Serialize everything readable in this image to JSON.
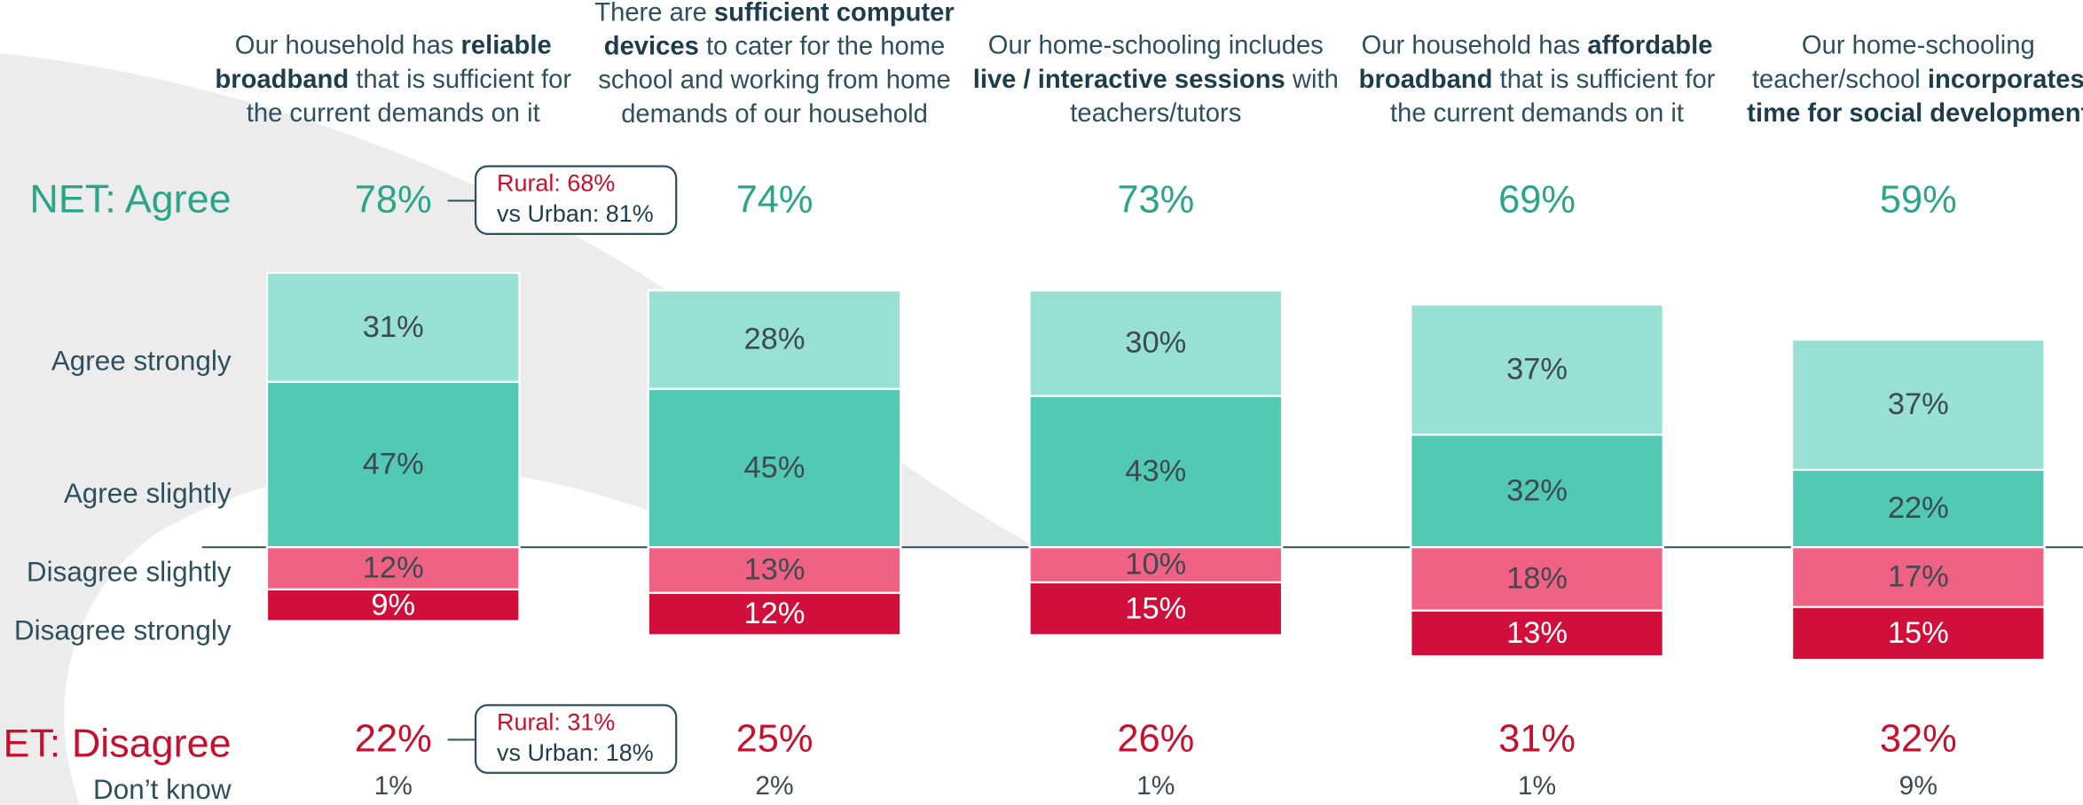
{
  "chart_data": {
    "type": "diverging_stacked_bar",
    "categories": [
      [
        [
          {
            "text": "Our household has ",
            "bold": false
          },
          {
            "text": "reliable",
            "bold": true
          }
        ],
        [
          {
            "text": "broadband",
            "bold": true
          },
          {
            "text": " that is sufficient for",
            "bold": false
          }
        ],
        [
          {
            "text": "the current demands on it",
            "bold": false
          }
        ]
      ],
      [
        [
          {
            "text": "There are ",
            "bold": false
          },
          {
            "text": "sufficient computer",
            "bold": true
          }
        ],
        [
          {
            "text": "devices",
            "bold": true
          },
          {
            "text": " to cater for the home",
            "bold": false
          }
        ],
        [
          {
            "text": "school and working from home",
            "bold": false
          }
        ],
        [
          {
            "text": "demands of our household",
            "bold": false
          }
        ]
      ],
      [
        [
          {
            "text": "Our home-schooling includes",
            "bold": false
          }
        ],
        [
          {
            "text": "live / interactive sessions",
            "bold": true
          },
          {
            "text": " with",
            "bold": false
          }
        ],
        [
          {
            "text": "teachers/tutors",
            "bold": false
          }
        ]
      ],
      [
        [
          {
            "text": "Our household has ",
            "bold": false
          },
          {
            "text": "affordable",
            "bold": true
          }
        ],
        [
          {
            "text": "broadband",
            "bold": true
          },
          {
            "text": " that is sufficient for",
            "bold": false
          }
        ],
        [
          {
            "text": "the current demands on it",
            "bold": false
          }
        ]
      ],
      [
        [
          {
            "text": "Our home-schooling",
            "bold": false
          }
        ],
        [
          {
            "text": "teacher/school ",
            "bold": false
          },
          {
            "text": "incorporates",
            "bold": true
          }
        ],
        [
          {
            "text": "time for social development",
            "bold": true
          }
        ]
      ]
    ],
    "series": [
      {
        "name": "Agree strongly",
        "color": "#52c9b4",
        "side": "agree",
        "values": [
          47,
          45,
          43,
          32,
          22
        ],
        "value_labels": [
          "47%",
          "45%",
          "43%",
          "32%",
          "22%"
        ]
      },
      {
        "name": "Agree slightly",
        "color": "#97e0d3",
        "side": "agree",
        "values": [
          31,
          28,
          30,
          37,
          37
        ],
        "value_labels": [
          "31%",
          "28%",
          "30%",
          "37%",
          "37%"
        ]
      },
      {
        "name": "Disagree slightly",
        "color": "#f06283",
        "side": "disagree",
        "values": [
          12,
          13,
          10,
          18,
          17
        ],
        "value_labels": [
          "12%",
          "13%",
          "10%",
          "18%",
          "17%"
        ]
      },
      {
        "name": "Disagree strongly",
        "color": "#d0103a",
        "side": "disagree",
        "values": [
          9,
          12,
          15,
          13,
          15
        ],
        "value_labels": [
          "9%",
          "12%",
          "15%",
          "13%",
          "15%"
        ]
      }
    ],
    "net_agree": {
      "name": "NET: Agree",
      "color": "#2aa58a",
      "values": [
        78,
        74,
        73,
        69,
        59
      ],
      "value_labels": [
        "78%",
        "74%",
        "73%",
        "69%",
        "59%"
      ]
    },
    "net_disagree": {
      "name": "NET: Disagree",
      "color": "#c8102e",
      "values": [
        22,
        25,
        26,
        31,
        32
      ],
      "value_labels": [
        "22%",
        "25%",
        "26%",
        "31%",
        "32%"
      ]
    },
    "dont_know": {
      "name": "Don’t know",
      "values": [
        1,
        2,
        1,
        1,
        9
      ],
      "value_labels": [
        "1%",
        "2%",
        "1%",
        "1%",
        "9%"
      ]
    },
    "callouts": {
      "agree": [
        "Rural: 68%",
        "vs Urban: 81%"
      ],
      "disagree": [
        "Rural: 31%",
        "vs Urban: 18%"
      ]
    }
  }
}
